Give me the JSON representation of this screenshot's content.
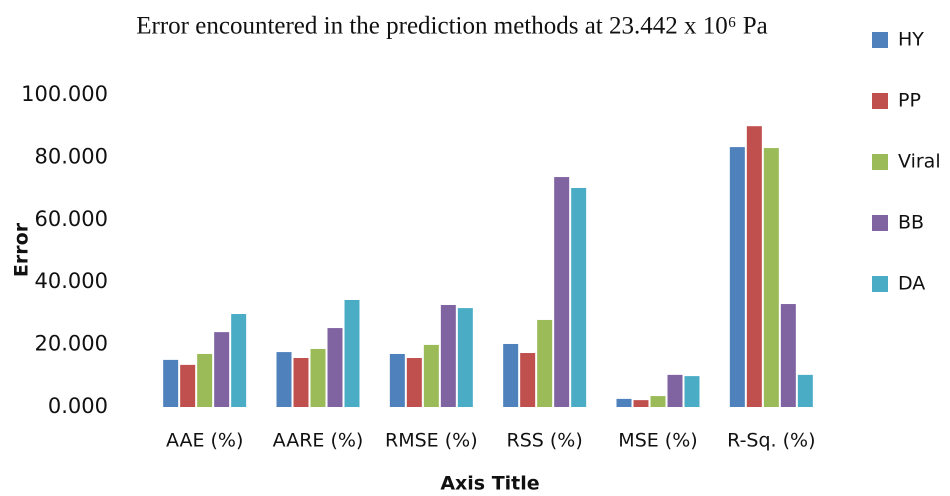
{
  "chart_data": {
    "type": "bar",
    "title": "Error encountered in the prediction methods at 23.442 x 10⁶ Pa",
    "x_label": "Axis Title",
    "y_label": "Error",
    "categories": [
      "AAE (%)",
      "AARE (%)",
      "RMSE (%)",
      "RSS (%)",
      "MSE (%)",
      "R-Sq. (%)"
    ],
    "series": [
      {
        "name": "HY",
        "color": "#4f81bd",
        "values": [
          15.1,
          17.6,
          17.0,
          20.2,
          2.6,
          83.3
        ]
      },
      {
        "name": "PP",
        "color": "#c0504d",
        "values": [
          13.5,
          15.7,
          15.7,
          17.3,
          2.2,
          90.0
        ]
      },
      {
        "name": "Viral",
        "color": "#9bbb59",
        "values": [
          17.0,
          18.6,
          19.9,
          27.9,
          3.5,
          83.0
        ]
      },
      {
        "name": "BB",
        "color": "#8064a2",
        "values": [
          24.0,
          25.3,
          32.7,
          73.7,
          10.3,
          33.0
        ]
      },
      {
        "name": "DA",
        "color": "#4bacc6",
        "values": [
          29.8,
          34.3,
          31.7,
          70.2,
          9.9,
          10.3
        ]
      }
    ],
    "ylim": [
      0,
      100
    ],
    "yticks": [
      {
        "value": 0,
        "label": "0.000"
      },
      {
        "value": 20,
        "label": "20.000"
      },
      {
        "value": 40,
        "label": "40.000"
      },
      {
        "value": 60,
        "label": "60.000"
      },
      {
        "value": 80,
        "label": "80.000"
      },
      {
        "value": 100,
        "label": "100.000"
      }
    ],
    "grid": false,
    "legend": "right"
  }
}
